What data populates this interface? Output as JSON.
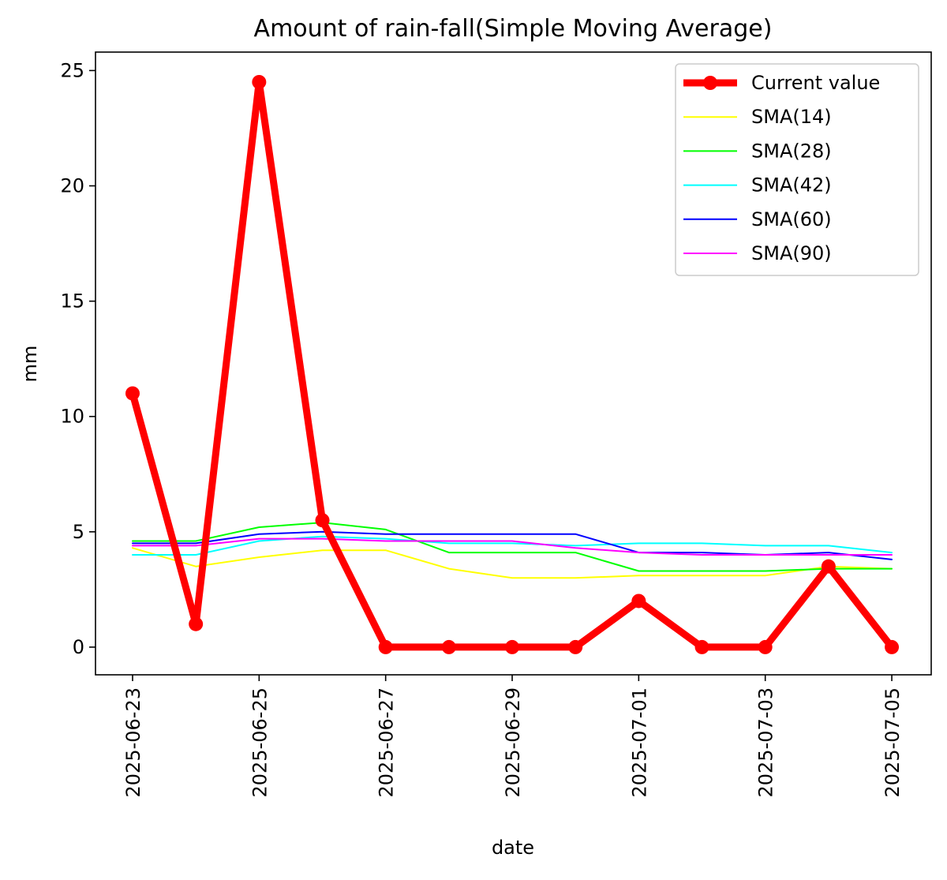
{
  "chart_data": {
    "type": "line",
    "title": "Amount of rain-fall(Simple Moving Average)",
    "xlabel": "date",
    "ylabel": "mm",
    "x": [
      "2025-06-23",
      "2025-06-24",
      "2025-06-25",
      "2025-06-26",
      "2025-06-27",
      "2025-06-28",
      "2025-06-29",
      "2025-06-30",
      "2025-07-01",
      "2025-07-02",
      "2025-07-03",
      "2025-07-04",
      "2025-07-05"
    ],
    "x_ticks": [
      "2025-06-23",
      "2025-06-25",
      "2025-06-27",
      "2025-06-29",
      "2025-07-01",
      "2025-07-03",
      "2025-07-05"
    ],
    "y_ticks": [
      0,
      5,
      10,
      15,
      20,
      25
    ],
    "ylim": [
      -1.2,
      25.8
    ],
    "grid": false,
    "legend_position": "top-right",
    "series": [
      {
        "name": "Current value",
        "color": "#ff0000",
        "emphasis": "thick-with-markers",
        "values": [
          11.0,
          1.0,
          24.5,
          5.5,
          0.0,
          0.0,
          0.0,
          0.0,
          2.0,
          0.0,
          0.0,
          3.5,
          0.0
        ]
      },
      {
        "name": "SMA(14)",
        "color": "#ffff00",
        "values": [
          4.3,
          3.5,
          3.9,
          4.2,
          4.2,
          3.4,
          3.0,
          3.0,
          3.1,
          3.1,
          3.1,
          3.5,
          3.4
        ]
      },
      {
        "name": "SMA(28)",
        "color": "#00ff00",
        "values": [
          4.6,
          4.6,
          5.2,
          5.4,
          5.1,
          4.1,
          4.1,
          4.1,
          3.3,
          3.3,
          3.3,
          3.4,
          3.4
        ]
      },
      {
        "name": "SMA(42)",
        "color": "#00ffff",
        "values": [
          4.0,
          4.0,
          4.6,
          4.8,
          4.7,
          4.5,
          4.5,
          4.4,
          4.5,
          4.5,
          4.4,
          4.4,
          4.1
        ]
      },
      {
        "name": "SMA(60)",
        "color": "#0000ff",
        "values": [
          4.5,
          4.5,
          4.9,
          5.0,
          4.9,
          4.9,
          4.9,
          4.9,
          4.1,
          4.1,
          4.0,
          4.1,
          3.8
        ]
      },
      {
        "name": "SMA(90)",
        "color": "#ff00ff",
        "values": [
          4.4,
          4.4,
          4.7,
          4.7,
          4.6,
          4.6,
          4.6,
          4.3,
          4.1,
          4.0,
          4.0,
          4.0,
          4.0
        ]
      }
    ]
  }
}
